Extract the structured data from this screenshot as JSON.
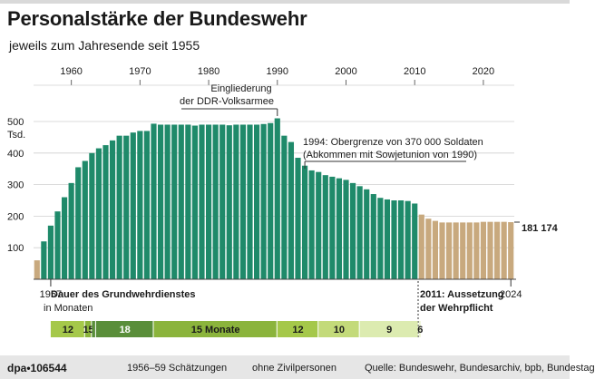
{
  "title": "Personalstärke der Bundeswehr",
  "subtitle": "jeweils zum Jahresende seit 1955",
  "chart_data": {
    "type": "bar",
    "title": "Personalstärke der Bundeswehr",
    "subtitle": "jeweils zum Jahresende seit 1955",
    "ylabel": "Tsd.",
    "ylim": [
      0,
      500
    ],
    "yticks": [
      100,
      200,
      300,
      400,
      500
    ],
    "ytick_labels": [
      "100",
      "200",
      "300",
      "400",
      "500"
    ],
    "top_year_ticks": [
      "1960",
      "1970",
      "1980",
      "1990",
      "2000",
      "2010",
      "2020"
    ],
    "x": [
      1955,
      1956,
      1957,
      1958,
      1959,
      1960,
      1961,
      1962,
      1963,
      1964,
      1965,
      1966,
      1967,
      1968,
      1969,
      1970,
      1971,
      1972,
      1973,
      1974,
      1975,
      1976,
      1977,
      1978,
      1979,
      1980,
      1981,
      1982,
      1983,
      1984,
      1985,
      1986,
      1987,
      1988,
      1989,
      1990,
      1991,
      1992,
      1993,
      1994,
      1995,
      1996,
      1997,
      1998,
      1999,
      2000,
      2001,
      2002,
      2003,
      2004,
      2005,
      2006,
      2007,
      2008,
      2009,
      2010,
      2011,
      2012,
      2013,
      2014,
      2015,
      2016,
      2017,
      2018,
      2019,
      2020,
      2021,
      2022,
      2023,
      2024
    ],
    "values": [
      60,
      120,
      170,
      215,
      260,
      305,
      355,
      375,
      400,
      415,
      425,
      440,
      455,
      455,
      465,
      470,
      470,
      493,
      490,
      490,
      490,
      490,
      490,
      487,
      490,
      490,
      490,
      490,
      488,
      490,
      490,
      490,
      490,
      492,
      495,
      510,
      455,
      435,
      385,
      360,
      345,
      340,
      330,
      325,
      320,
      315,
      305,
      295,
      285,
      270,
      258,
      253,
      250,
      250,
      248,
      240,
      205,
      192,
      185,
      180,
      180,
      180,
      180,
      180,
      180,
      182,
      182,
      182,
      182,
      181
    ],
    "phase_estimated": "1956–59 Schätzungen",
    "phase_note": "ohne Zivilpersonen",
    "value_label": "181 174",
    "annotations": {
      "reunification": [
        "Eingliederung",
        "der DDR-Volksarmee"
      ],
      "cap": [
        "1994: Obergrenze von 370 000 Soldaten",
        "(Abkommen mit Sowjetunion von 1990)"
      ],
      "year_start": "1957",
      "year_end": "2024",
      "suspension": [
        "2011: Aussetzung",
        "der Wehrpflicht"
      ]
    },
    "conscription": {
      "title": "Dauer des Grundwehrdienstes",
      "unit": "in Monaten",
      "segments": [
        {
          "label": "12",
          "start": 1957,
          "end": 1962,
          "color": "#a5c84a"
        },
        {
          "label": "15",
          "start": 1962,
          "end": 1963,
          "color": "#8bb43c"
        },
        {
          "label": "",
          "start": 1963,
          "end": 1963.6,
          "color": "#5a8e3a"
        },
        {
          "label": "18",
          "start": 1963.6,
          "end": 1972,
          "color": "#5a8e3a"
        },
        {
          "label": "15 Monate",
          "start": 1972,
          "end": 1990,
          "color": "#8bb43c"
        },
        {
          "label": "12",
          "start": 1990,
          "end": 1996,
          "color": "#a5c84a"
        },
        {
          "label": "10",
          "start": 1996,
          "end": 2002,
          "color": "#c3da7a"
        },
        {
          "label": "9",
          "start": 2002,
          "end": 2010.6,
          "color": "#dcebb0"
        },
        {
          "label": "6",
          "start": 2010.6,
          "end": 2011,
          "color": "#ecf4d2"
        }
      ]
    },
    "colors": {
      "estimated": "#c8a97e",
      "pre2011": "#1f8a6a",
      "post2011": "#c8a97e"
    }
  },
  "footer": {
    "id": "dpa•106544",
    "estimate": "1956–59 Schätzungen",
    "note": "ohne Zivilpersonen",
    "source": "Quelle: Bundeswehr, Bundesarchiv, bpb, Bundestag"
  }
}
